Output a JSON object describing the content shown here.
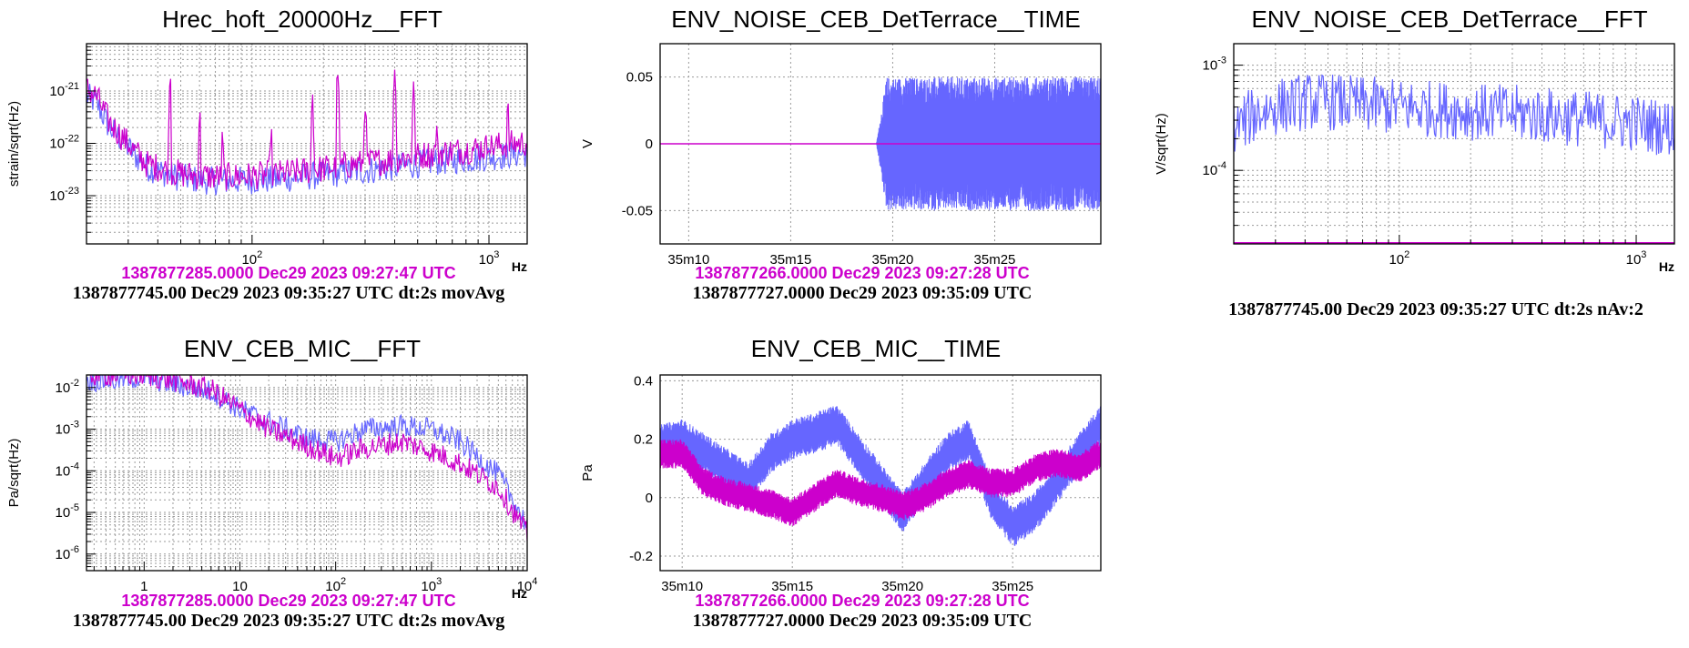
{
  "colors": {
    "primary": "#6666ff",
    "reference": "#cc00cc",
    "text": "#000000"
  },
  "chart_data": [
    {
      "id": "hrec-fft",
      "type": "line",
      "title": "Hrec_hoft_20000Hz__FFT",
      "ylabel": "strain/sqrt(Hz)",
      "x_unit": "Hz",
      "xscale": "log",
      "yscale": "log",
      "xlim": [
        20,
        1450
      ],
      "ylim": [
        1.2e-24,
        8e-21
      ],
      "grid": true,
      "xticks": [
        {
          "v": 100,
          "label": "10^2"
        },
        {
          "v": 1000,
          "label": "10^3"
        }
      ],
      "yticks": [
        {
          "v": 1e-21,
          "label": "10^-21"
        },
        {
          "v": 1e-22,
          "label": "10^-22"
        },
        {
          "v": 1e-23,
          "label": "10^-23"
        }
      ],
      "series": [
        {
          "role": "primary",
          "x": [
            20,
            22,
            25,
            28,
            32,
            36,
            40,
            45,
            50,
            60,
            70,
            80,
            100,
            120,
            150,
            200,
            250,
            300,
            400,
            500,
            600,
            800,
            1000,
            1200,
            1450
          ],
          "y": [
            8e-22,
            6e-22,
            2e-22,
            1.2e-22,
            6e-23,
            3.5e-23,
            3e-23,
            2.5e-23,
            2.2e-23,
            2e-23,
            1.9e-23,
            1.9e-23,
            2e-23,
            2e-23,
            2.2e-23,
            2.5e-23,
            2.8e-23,
            3e-23,
            3.5e-23,
            4e-23,
            4.5e-23,
            5e-23,
            5.5e-23,
            6e-23,
            6.5e-23
          ]
        },
        {
          "role": "reference",
          "x": [
            20,
            22,
            25,
            28,
            32,
            36,
            40,
            45,
            50,
            60,
            70,
            80,
            100,
            120,
            150,
            200,
            250,
            300,
            400,
            500,
            600,
            800,
            1000,
            1200,
            1450
          ],
          "y": [
            1.1e-21,
            8e-22,
            2.5e-22,
            1.4e-22,
            7e-23,
            4e-23,
            3.5e-23,
            3e-23,
            2.6e-23,
            2.4e-23,
            2.3e-23,
            2.3e-23,
            2.4e-23,
            2.5e-23,
            2.8e-23,
            3.3e-23,
            3.8e-23,
            4.2e-23,
            5e-23,
            5.8e-23,
            6.5e-23,
            7.5e-23,
            8.5e-23,
            9.5e-23,
            1.05e-22
          ],
          "peaks": [
            {
              "x": 45,
              "y": 3e-21
            },
            {
              "x": 60,
              "y": 4e-22
            },
            {
              "x": 75,
              "y": 1.2e-22
            },
            {
              "x": 120,
              "y": 2e-22
            },
            {
              "x": 180,
              "y": 1e-21
            },
            {
              "x": 230,
              "y": 3e-21
            },
            {
              "x": 300,
              "y": 8e-22
            },
            {
              "x": 400,
              "y": 4e-21
            },
            {
              "x": 480,
              "y": 1.5e-21
            },
            {
              "x": 600,
              "y": 2e-22
            },
            {
              "x": 1000,
              "y": 1.5e-22
            },
            {
              "x": 1200,
              "y": 5e-22
            }
          ]
        }
      ],
      "stamps": [
        {
          "role": "reference",
          "text": "1387877285.0000 Dec29 2023 09:27:47 UTC"
        },
        {
          "role": "primary",
          "text": "1387877745.00 Dec29 2023 09:35:27 UTC dt:2s movAvg"
        }
      ]
    },
    {
      "id": "noise-time",
      "type": "line",
      "title": "ENV_NOISE_CEB_DetTerrace__TIME",
      "ylabel": "V",
      "xscale": "linear",
      "yscale": "linear",
      "xlim": [
        0,
        1080
      ],
      "ylim": [
        -0.075,
        0.075
      ],
      "grid": true,
      "xticks": [
        {
          "v": 70,
          "label": "35m10"
        },
        {
          "v": 320,
          "label": "35m15"
        },
        {
          "v": 570,
          "label": "35m20"
        },
        {
          "v": 820,
          "label": "35m25"
        }
      ],
      "yticks": [
        {
          "v": 0.05,
          "label": "0.05"
        },
        {
          "v": 0,
          "label": "0"
        },
        {
          "v": -0.05,
          "label": "-0.05"
        }
      ],
      "series": [
        {
          "role": "primary",
          "style": "noise-band",
          "onset": 530,
          "amplitude": 0.05,
          "x": [
            530,
            1080
          ]
        },
        {
          "role": "reference",
          "style": "flat",
          "x": [
            0,
            1080
          ],
          "y": [
            0,
            0
          ]
        }
      ],
      "stamps": [
        {
          "role": "reference",
          "text": "1387877266.0000 Dec29 2023 09:27:28 UTC"
        },
        {
          "role": "primary",
          "text": "1387877727.0000 Dec29 2023 09:35:09 UTC"
        }
      ]
    },
    {
      "id": "noise-fft",
      "type": "line",
      "title": "ENV_NOISE_CEB_DetTerrace__FFT",
      "ylabel": "V/sqrt(Hz)",
      "x_unit": "Hz",
      "xscale": "log",
      "yscale": "log",
      "xlim": [
        20,
        1450
      ],
      "ylim": [
        2e-05,
        0.0016
      ],
      "grid": true,
      "xticks": [
        {
          "v": 100,
          "label": "10^2"
        },
        {
          "v": 1000,
          "label": "10^3"
        }
      ],
      "yticks": [
        {
          "v": 0.001,
          "label": "10^-3"
        },
        {
          "v": 0.0001,
          "label": "10^-4"
        }
      ],
      "series": [
        {
          "role": "primary",
          "x": [
            20,
            25,
            30,
            40,
            50,
            70,
            100,
            150,
            200,
            300,
            500,
            700,
            1000,
            1450
          ],
          "y": [
            0.00025,
            0.00035,
            0.0004,
            0.00045,
            0.00045,
            0.00042,
            0.0004,
            0.00038,
            0.00036,
            0.00035,
            0.00032,
            0.0003,
            0.00028,
            0.00025
          ]
        },
        {
          "role": "reference",
          "style": "floor",
          "x": [
            20,
            1450
          ],
          "y": [
            2e-05,
            2e-05
          ]
        }
      ],
      "stamps": [
        {
          "role": "primary",
          "text": "1387877745.00 Dec29 2023 09:35:27 UTC dt:2s nAv:2"
        }
      ]
    },
    {
      "id": "mic-fft",
      "type": "line",
      "title": "ENV_CEB_MIC__FFT",
      "ylabel": "Pa/sqrt(Hz)",
      "x_unit": "Hz",
      "xscale": "log",
      "yscale": "log",
      "xlim": [
        0.25,
        10000
      ],
      "ylim": [
        4e-07,
        0.02
      ],
      "grid": true,
      "xticks": [
        {
          "v": 1,
          "label": "1"
        },
        {
          "v": 10,
          "label": "10"
        },
        {
          "v": 100,
          "label": "10^2"
        },
        {
          "v": 1000,
          "label": "10^3"
        },
        {
          "v": 10000,
          "label": "10^4"
        }
      ],
      "yticks": [
        {
          "v": 0.01,
          "label": "10^-2"
        },
        {
          "v": 0.001,
          "label": "10^-3"
        },
        {
          "v": 0.0001,
          "label": "10^-4"
        },
        {
          "v": 1e-05,
          "label": "10^-5"
        },
        {
          "v": 1e-06,
          "label": "10^-6"
        }
      ],
      "series": [
        {
          "role": "primary",
          "x": [
            0.25,
            0.5,
            1,
            2,
            5,
            10,
            20,
            50,
            100,
            200,
            500,
            1000,
            2000,
            5000,
            10000
          ],
          "y": [
            0.015,
            0.015,
            0.018,
            0.012,
            0.008,
            0.003,
            0.0015,
            0.0006,
            0.0005,
            0.001,
            0.0012,
            0.001,
            0.0005,
            8e-05,
            5e-06
          ]
        },
        {
          "role": "reference",
          "x": [
            0.25,
            0.5,
            1,
            2,
            5,
            10,
            20,
            50,
            100,
            200,
            500,
            1000,
            2000,
            5000,
            10000
          ],
          "y": [
            0.02,
            0.02,
            0.02,
            0.015,
            0.009,
            0.003,
            0.001,
            0.0004,
            0.0002,
            0.00035,
            0.0005,
            0.0003,
            0.00015,
            4e-05,
            3e-06
          ]
        }
      ],
      "stamps": [
        {
          "role": "reference",
          "text": "1387877285.0000 Dec29 2023 09:27:47 UTC"
        },
        {
          "role": "primary",
          "text": "1387877745.00 Dec29 2023 09:35:27 UTC dt:2s movAvg"
        }
      ]
    },
    {
      "id": "mic-time",
      "type": "line",
      "title": "ENV_CEB_MIC__TIME",
      "ylabel": "Pa",
      "xscale": "linear",
      "yscale": "linear",
      "xlim": [
        0,
        1000
      ],
      "ylim": [
        -0.25,
        0.42
      ],
      "grid": true,
      "xticks": [
        {
          "v": 50,
          "label": "35m10"
        },
        {
          "v": 300,
          "label": "35m15"
        },
        {
          "v": 550,
          "label": "35m20"
        },
        {
          "v": 800,
          "label": "35m25"
        }
      ],
      "yticks": [
        {
          "v": 0.4,
          "label": "0.4"
        },
        {
          "v": 0.2,
          "label": "0.2"
        },
        {
          "v": 0,
          "label": "0"
        },
        {
          "v": -0.2,
          "label": "-0.2"
        }
      ],
      "series": [
        {
          "role": "primary",
          "style": "noise-band",
          "amplitude": 0.07,
          "x": [
            0,
            50,
            100,
            150,
            200,
            250,
            300,
            350,
            400,
            450,
            500,
            550,
            600,
            650,
            700,
            750,
            800,
            850,
            900,
            950,
            1000
          ],
          "y": [
            0.18,
            0.2,
            0.15,
            0.1,
            0.05,
            0.15,
            0.2,
            0.22,
            0.25,
            0.15,
            0.05,
            -0.05,
            0.05,
            0.15,
            0.2,
            0.0,
            -0.1,
            -0.05,
            0.05,
            0.15,
            0.25
          ]
        },
        {
          "role": "reference",
          "style": "noise-band",
          "amplitude": 0.05,
          "x": [
            0,
            50,
            100,
            150,
            200,
            250,
            300,
            350,
            400,
            450,
            500,
            550,
            600,
            650,
            700,
            750,
            800,
            850,
            900,
            950,
            1000
          ],
          "y": [
            0.15,
            0.15,
            0.05,
            0.02,
            0.0,
            -0.02,
            -0.05,
            0.0,
            0.05,
            0.02,
            0.0,
            -0.03,
            0.0,
            0.05,
            0.08,
            0.05,
            0.05,
            0.1,
            0.12,
            0.1,
            0.15
          ]
        }
      ],
      "stamps": [
        {
          "role": "reference",
          "text": "1387877266.0000 Dec29 2023 09:27:28 UTC"
        },
        {
          "role": "primary",
          "text": "1387877727.0000 Dec29 2023 09:35:09 UTC"
        }
      ]
    }
  ]
}
